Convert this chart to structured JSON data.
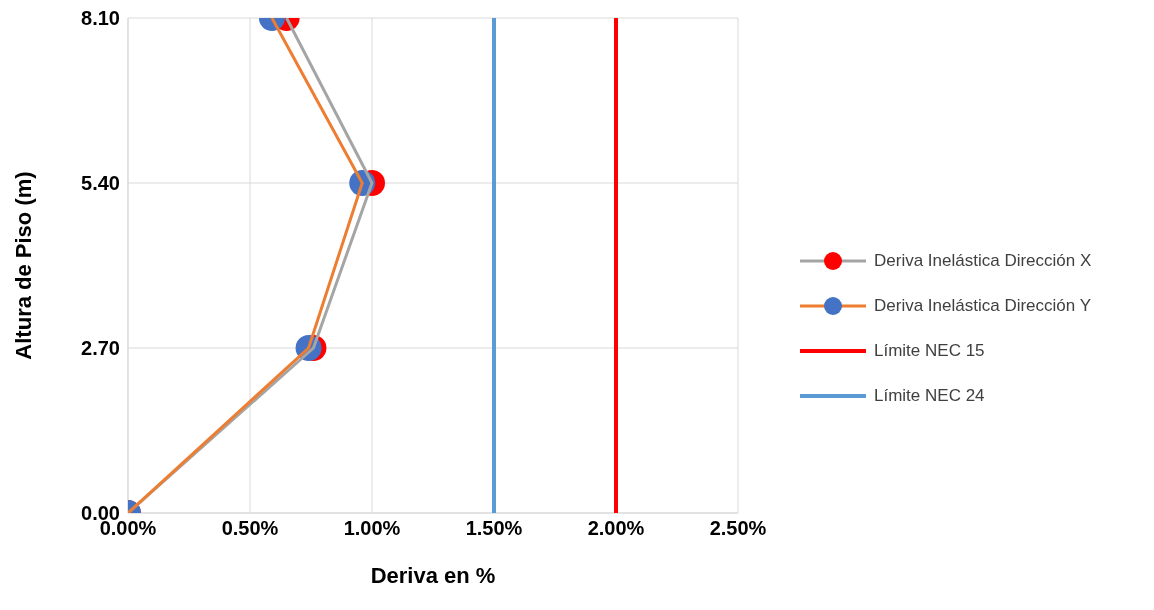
{
  "chart_data": {
    "type": "line",
    "xlabel": "Deriva en %",
    "ylabel": "Altura de Piso (m)",
    "xlim": [
      0,
      2.5
    ],
    "xticks": [
      {
        "value": 0,
        "label": "0.00%"
      },
      {
        "value": 0.5,
        "label": "0.50%"
      },
      {
        "value": 1,
        "label": "1.00%"
      },
      {
        "value": 1.5,
        "label": "1.50%"
      },
      {
        "value": 2,
        "label": "2.00%"
      },
      {
        "value": 2.5,
        "label": "2.50%"
      }
    ],
    "ylim": [
      0,
      8.1
    ],
    "yticks": [
      {
        "value": 0,
        "label": "0.00"
      },
      {
        "value": 2.7,
        "label": "2.70"
      },
      {
        "value": 5.4,
        "label": "5.40"
      },
      {
        "value": 8.1,
        "label": "8.10"
      }
    ],
    "series": [
      {
        "name": "Deriva Inelástica Dirección X",
        "color": "#a5a5a5",
        "colors": [
          "#ff0000",
          "#ff0000",
          "#ff0000",
          "#ff0000"
        ],
        "x": [
          0,
          0.76,
          1.0,
          0.65
        ],
        "values": [
          0,
          2.7,
          5.4,
          8.1
        ]
      },
      {
        "name": "Deriva Inelástica Dirección Y",
        "color": "#ed7d31",
        "colors": [
          "#4472c4",
          "#4472c4",
          "#4472c4",
          "#4472c4"
        ],
        "x": [
          0,
          0.74,
          0.96,
          0.59
        ],
        "values": [
          0,
          2.7,
          5.4,
          8.1
        ]
      },
      {
        "name": "Límite NEC 15",
        "color": "#ff0000",
        "marker": "none",
        "x": [
          2,
          2
        ],
        "values": [
          0,
          8.1
        ]
      },
      {
        "name": "Límite NEC 24",
        "color": "#5b9bd5",
        "marker": "none",
        "x": [
          1.5,
          1.5
        ],
        "values": [
          0,
          8.1
        ]
      }
    ],
    "grid": true,
    "legend": "right",
    "marker": "circle",
    "line_style": "solid"
  }
}
